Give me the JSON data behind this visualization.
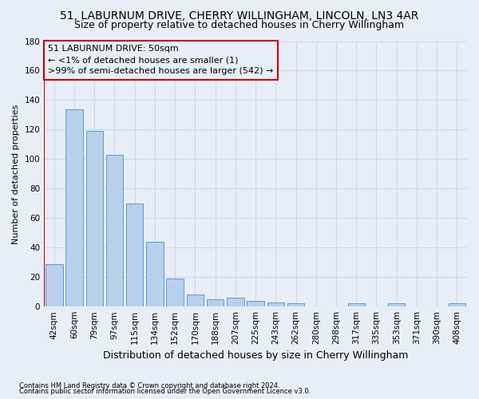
{
  "title_line1": "51, LABURNUM DRIVE, CHERRY WILLINGHAM, LINCOLN, LN3 4AR",
  "title_line2": "Size of property relative to detached houses in Cherry Willingham",
  "xlabel": "Distribution of detached houses by size in Cherry Willingham",
  "ylabel": "Number of detached properties",
  "footnote1": "Contains HM Land Registry data © Crown copyright and database right 2024.",
  "footnote2": "Contains public sector information licensed under the Open Government Licence v3.0.",
  "categories": [
    "42sqm",
    "60sqm",
    "79sqm",
    "97sqm",
    "115sqm",
    "134sqm",
    "152sqm",
    "170sqm",
    "188sqm",
    "207sqm",
    "225sqm",
    "243sqm",
    "262sqm",
    "280sqm",
    "298sqm",
    "317sqm",
    "335sqm",
    "353sqm",
    "371sqm",
    "390sqm",
    "408sqm"
  ],
  "values": [
    29,
    134,
    119,
    103,
    70,
    44,
    19,
    8,
    5,
    6,
    4,
    3,
    2,
    0,
    0,
    2,
    0,
    2,
    0,
    0,
    2
  ],
  "bar_color": "#b8d0ea",
  "bar_edge_color": "#5b9bd5",
  "annotation_box_text": [
    "51 LABURNUM DRIVE: 50sqm",
    "← <1% of detached houses are smaller (1)",
    ">99% of semi-detached houses are larger (542) →"
  ],
  "ylim": [
    0,
    180
  ],
  "yticks": [
    0,
    20,
    40,
    60,
    80,
    100,
    120,
    140,
    160,
    180
  ],
  "bg_color": "#e8eef8",
  "grid_color": "#d0d8e8",
  "title1_fontsize": 10,
  "title2_fontsize": 9,
  "xlabel_fontsize": 9,
  "ylabel_fontsize": 8,
  "tick_fontsize": 7.5,
  "annot_fontsize": 8,
  "footnote_fontsize": 6
}
